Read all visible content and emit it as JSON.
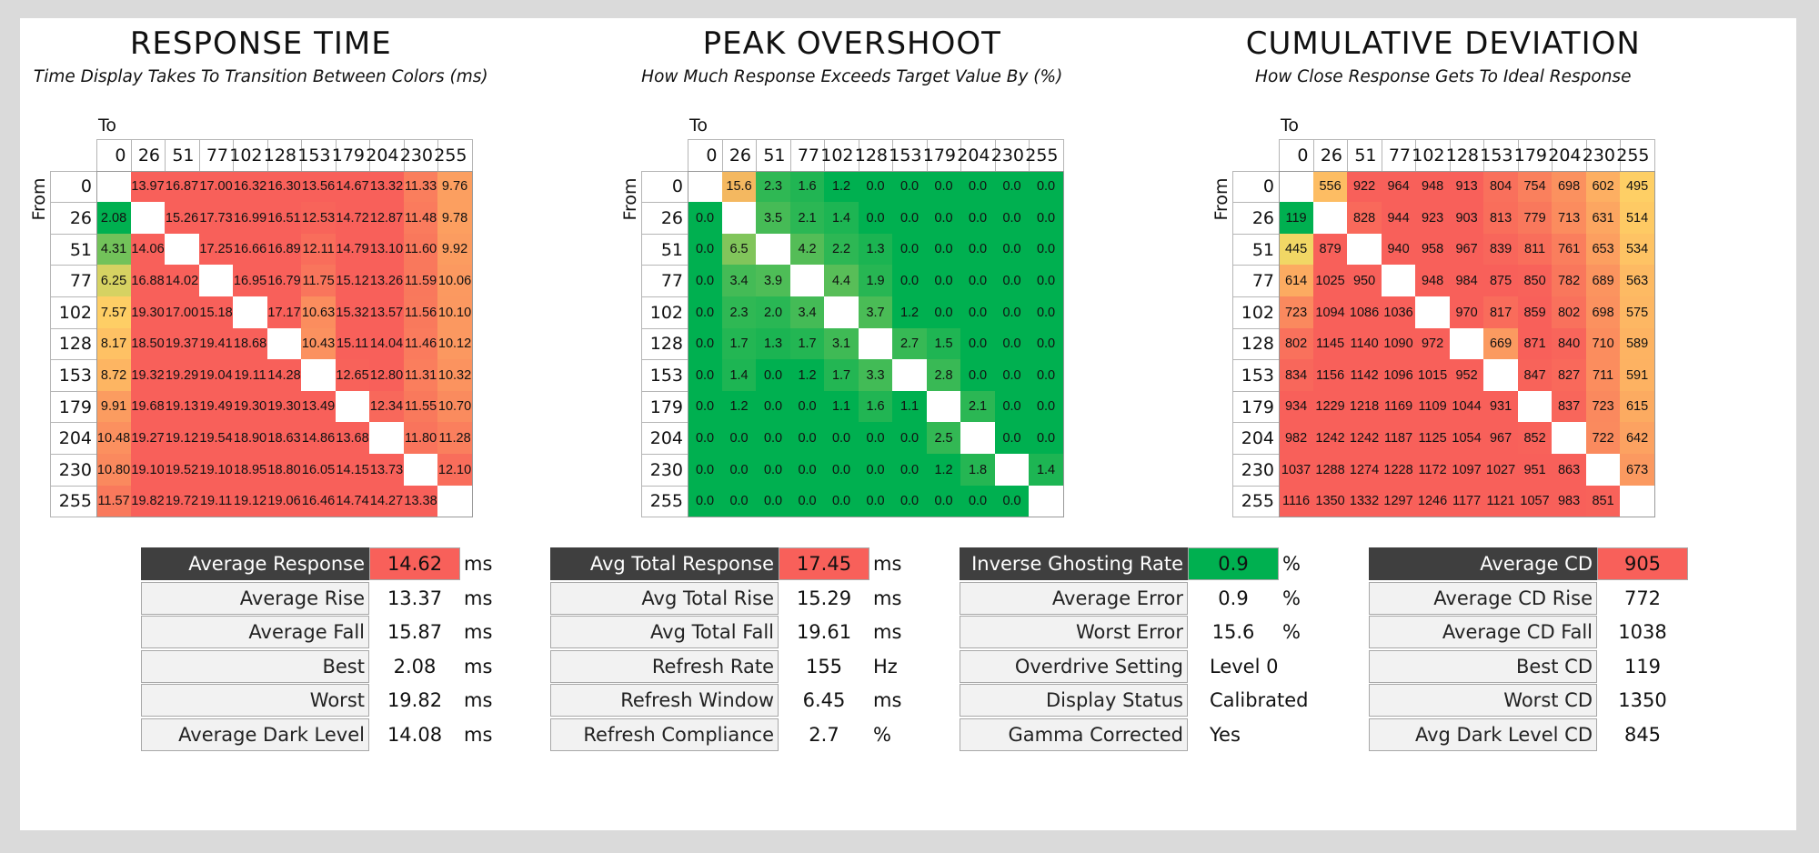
{
  "panels": [
    {
      "title": "RESPONSE TIME",
      "subtitle": "Time Display Takes To Transition Between Colors (ms)",
      "to_label": "To",
      "from_label": "From"
    },
    {
      "title": "PEAK OVERSHOOT",
      "subtitle": "How Much Response Exceeds Target Value By (%)",
      "to_label": "To",
      "from_label": "From"
    },
    {
      "title": "CUMULATIVE DEVIATION",
      "subtitle": "How Close Response Gets To Ideal Response",
      "to_label": "To",
      "from_label": "From"
    }
  ],
  "chart_data": [
    {
      "type": "heatmap",
      "title": "RESPONSE TIME",
      "subtitle": "Time Display Takes To Transition Between Colors (ms)",
      "xlabel": "To",
      "ylabel": "From",
      "x": [
        "0",
        "26",
        "51",
        "77",
        "102",
        "128",
        "153",
        "179",
        "204",
        "230",
        "255"
      ],
      "y": [
        "0",
        "26",
        "51",
        "77",
        "102",
        "128",
        "153",
        "179",
        "204",
        "230",
        "255"
      ],
      "colors": {
        "good": "#00b050",
        "mid": "#ffd966",
        "bad": "#f8605a"
      },
      "scale": "low-good",
      "values": [
        [
          null,
          "13.97",
          "16.87",
          "17.00",
          "16.32",
          "16.30",
          "13.56",
          "14.67",
          "13.32",
          "11.33",
          "9.76"
        ],
        [
          "2.08",
          null,
          "15.26",
          "17.73",
          "16.99",
          "16.51",
          "12.53",
          "14.72",
          "12.87",
          "11.48",
          "9.78"
        ],
        [
          "4.31",
          "14.06",
          null,
          "17.25",
          "16.66",
          "16.89",
          "12.11",
          "14.79",
          "13.10",
          "11.60",
          "9.92"
        ],
        [
          "6.25",
          "16.88",
          "14.02",
          null,
          "16.95",
          "16.79",
          "11.75",
          "15.12",
          "13.26",
          "11.59",
          "10.06"
        ],
        [
          "7.57",
          "19.30",
          "17.00",
          "15.18",
          null,
          "17.17",
          "10.63",
          "15.32",
          "13.57",
          "11.56",
          "10.10"
        ],
        [
          "8.17",
          "18.50",
          "19.37",
          "19.41",
          "18.68",
          null,
          "10.43",
          "15.11",
          "14.04",
          "11.46",
          "10.12"
        ],
        [
          "8.72",
          "19.32",
          "19.29",
          "19.04",
          "19.11",
          "14.28",
          null,
          "12.65",
          "12.80",
          "11.31",
          "10.32"
        ],
        [
          "9.91",
          "19.68",
          "19.13",
          "19.49",
          "19.30",
          "19.30",
          "13.49",
          null,
          "12.34",
          "11.55",
          "10.70"
        ],
        [
          "10.48",
          "19.27",
          "19.12",
          "19.54",
          "18.90",
          "18.63",
          "14.86",
          "13.68",
          null,
          "11.80",
          "11.28"
        ],
        [
          "10.80",
          "19.10",
          "19.52",
          "19.10",
          "18.95",
          "18.80",
          "16.05",
          "14.15",
          "13.73",
          null,
          "12.10"
        ],
        [
          "11.57",
          "19.82",
          "19.72",
          "19.11",
          "19.12",
          "19.06",
          "16.46",
          "14.74",
          "14.27",
          "13.38",
          null
        ]
      ]
    },
    {
      "type": "heatmap",
      "title": "PEAK OVERSHOOT",
      "subtitle": "How Much Response Exceeds Target Value By (%)",
      "xlabel": "To",
      "ylabel": "From",
      "x": [
        "0",
        "26",
        "51",
        "77",
        "102",
        "128",
        "153",
        "179",
        "204",
        "230",
        "255"
      ],
      "y": [
        "0",
        "26",
        "51",
        "77",
        "102",
        "128",
        "153",
        "179",
        "204",
        "230",
        "255"
      ],
      "colors": {
        "good": "#00b050",
        "mid": "#ffd966",
        "bad": "#f8605a"
      },
      "scale": "overshoot",
      "values": [
        [
          null,
          "15.6",
          "2.3",
          "1.6",
          "1.2",
          "0.0",
          "0.0",
          "0.0",
          "0.0",
          "0.0",
          "0.0"
        ],
        [
          "0.0",
          null,
          "3.5",
          "2.1",
          "1.4",
          "0.0",
          "0.0",
          "0.0",
          "0.0",
          "0.0",
          "0.0"
        ],
        [
          "0.0",
          "6.5",
          null,
          "4.2",
          "2.2",
          "1.3",
          "0.0",
          "0.0",
          "0.0",
          "0.0",
          "0.0"
        ],
        [
          "0.0",
          "3.4",
          "3.9",
          null,
          "4.4",
          "1.9",
          "0.0",
          "0.0",
          "0.0",
          "0.0",
          "0.0"
        ],
        [
          "0.0",
          "2.3",
          "2.0",
          "3.4",
          null,
          "3.7",
          "1.2",
          "0.0",
          "0.0",
          "0.0",
          "0.0"
        ],
        [
          "0.0",
          "1.7",
          "1.3",
          "1.7",
          "3.1",
          null,
          "2.7",
          "1.5",
          "0.0",
          "0.0",
          "0.0"
        ],
        [
          "0.0",
          "1.4",
          "0.0",
          "1.2",
          "1.7",
          "3.3",
          null,
          "2.8",
          "0.0",
          "0.0",
          "0.0"
        ],
        [
          "0.0",
          "1.2",
          "0.0",
          "0.0",
          "1.1",
          "1.6",
          "1.1",
          null,
          "2.1",
          "0.0",
          "0.0"
        ],
        [
          "0.0",
          "0.0",
          "0.0",
          "0.0",
          "0.0",
          "0.0",
          "0.0",
          "2.5",
          null,
          "0.0",
          "0.0"
        ],
        [
          "0.0",
          "0.0",
          "0.0",
          "0.0",
          "0.0",
          "0.0",
          "0.0",
          "1.2",
          "1.8",
          null,
          "1.4"
        ],
        [
          "0.0",
          "0.0",
          "0.0",
          "0.0",
          "0.0",
          "0.0",
          "0.0",
          "0.0",
          "0.0",
          "0.0",
          null
        ]
      ]
    },
    {
      "type": "heatmap",
      "title": "CUMULATIVE DEVIATION",
      "subtitle": "How Close Response Gets To Ideal Response",
      "xlabel": "To",
      "ylabel": "From",
      "x": [
        "0",
        "26",
        "51",
        "77",
        "102",
        "128",
        "153",
        "179",
        "204",
        "230",
        "255"
      ],
      "y": [
        "0",
        "26",
        "51",
        "77",
        "102",
        "128",
        "153",
        "179",
        "204",
        "230",
        "255"
      ],
      "colors": {
        "good": "#00b050",
        "mid": "#ffd966",
        "bad": "#f8605a"
      },
      "scale": "low-good",
      "values": [
        [
          null,
          "556",
          "922",
          "964",
          "948",
          "913",
          "804",
          "754",
          "698",
          "602",
          "495"
        ],
        [
          "119",
          null,
          "828",
          "944",
          "923",
          "903",
          "813",
          "779",
          "713",
          "631",
          "514"
        ],
        [
          "445",
          "879",
          null,
          "940",
          "958",
          "967",
          "839",
          "811",
          "761",
          "653",
          "534"
        ],
        [
          "614",
          "1025",
          "950",
          null,
          "948",
          "984",
          "875",
          "850",
          "782",
          "689",
          "563"
        ],
        [
          "723",
          "1094",
          "1086",
          "1036",
          null,
          "970",
          "817",
          "859",
          "802",
          "698",
          "575"
        ],
        [
          "802",
          "1145",
          "1140",
          "1090",
          "972",
          null,
          "669",
          "871",
          "840",
          "710",
          "589"
        ],
        [
          "834",
          "1156",
          "1142",
          "1096",
          "1015",
          "952",
          null,
          "847",
          "827",
          "711",
          "591"
        ],
        [
          "934",
          "1229",
          "1218",
          "1169",
          "1109",
          "1044",
          "931",
          null,
          "837",
          "723",
          "615"
        ],
        [
          "982",
          "1242",
          "1242",
          "1187",
          "1125",
          "1054",
          "967",
          "852",
          null,
          "722",
          "642"
        ],
        [
          "1037",
          "1288",
          "1274",
          "1228",
          "1172",
          "1097",
          "1027",
          "951",
          "863",
          null,
          "673"
        ],
        [
          "1116",
          "1350",
          "1332",
          "1297",
          "1246",
          "1177",
          "1121",
          "1057",
          "983",
          "851",
          null
        ]
      ]
    }
  ],
  "stats": [
    {
      "rows": [
        {
          "label": "Average Response",
          "value": "14.62",
          "unit": "ms",
          "head": true,
          "color": "#f8605a"
        },
        {
          "label": "Average Rise",
          "value": "13.37",
          "unit": "ms"
        },
        {
          "label": "Average Fall",
          "value": "15.87",
          "unit": "ms"
        },
        {
          "label": "Best",
          "value": "2.08",
          "unit": "ms"
        },
        {
          "label": "Worst",
          "value": "19.82",
          "unit": "ms"
        },
        {
          "label": "Average Dark Level",
          "value": "14.08",
          "unit": "ms"
        }
      ]
    },
    {
      "rows": [
        {
          "label": "Avg Total Response",
          "value": "17.45",
          "unit": "ms",
          "head": true,
          "color": "#f8605a"
        },
        {
          "label": "Avg Total Rise",
          "value": "15.29",
          "unit": "ms"
        },
        {
          "label": "Avg Total Fall",
          "value": "19.61",
          "unit": "ms"
        },
        {
          "label": "Refresh Rate",
          "value": "155",
          "unit": "Hz",
          "gap": true
        },
        {
          "label": "Refresh Window",
          "value": "6.45",
          "unit": "ms"
        },
        {
          "label": "Refresh Compliance",
          "value": "2.7",
          "unit": "%"
        }
      ]
    },
    {
      "rows": [
        {
          "label": "Inverse Ghosting Rate",
          "value": "0.9",
          "unit": "%",
          "head": true,
          "color": "#00b050"
        },
        {
          "label": "Average Error",
          "value": "0.9",
          "unit": "%"
        },
        {
          "label": "Worst Error",
          "value": "15.6",
          "unit": "%"
        },
        {
          "label": "Overdrive Setting",
          "value": "Level 0",
          "unit": "",
          "gap": true,
          "left": true
        },
        {
          "label": "Display Status",
          "value": "Calibrated",
          "unit": "",
          "left": true
        },
        {
          "label": "Gamma Corrected",
          "value": "Yes",
          "unit": "",
          "left": true
        }
      ]
    },
    {
      "rows": [
        {
          "label": "Average CD",
          "value": "905",
          "unit": "",
          "head": true,
          "color": "#f8605a"
        },
        {
          "label": "Average CD Rise",
          "value": "772",
          "unit": ""
        },
        {
          "label": "Average CD Fall",
          "value": "1038",
          "unit": ""
        },
        {
          "label": "Best CD",
          "value": "119",
          "unit": ""
        },
        {
          "label": "Worst CD",
          "value": "1350",
          "unit": ""
        },
        {
          "label": "Avg Dark Level CD",
          "value": "845",
          "unit": ""
        }
      ]
    }
  ]
}
